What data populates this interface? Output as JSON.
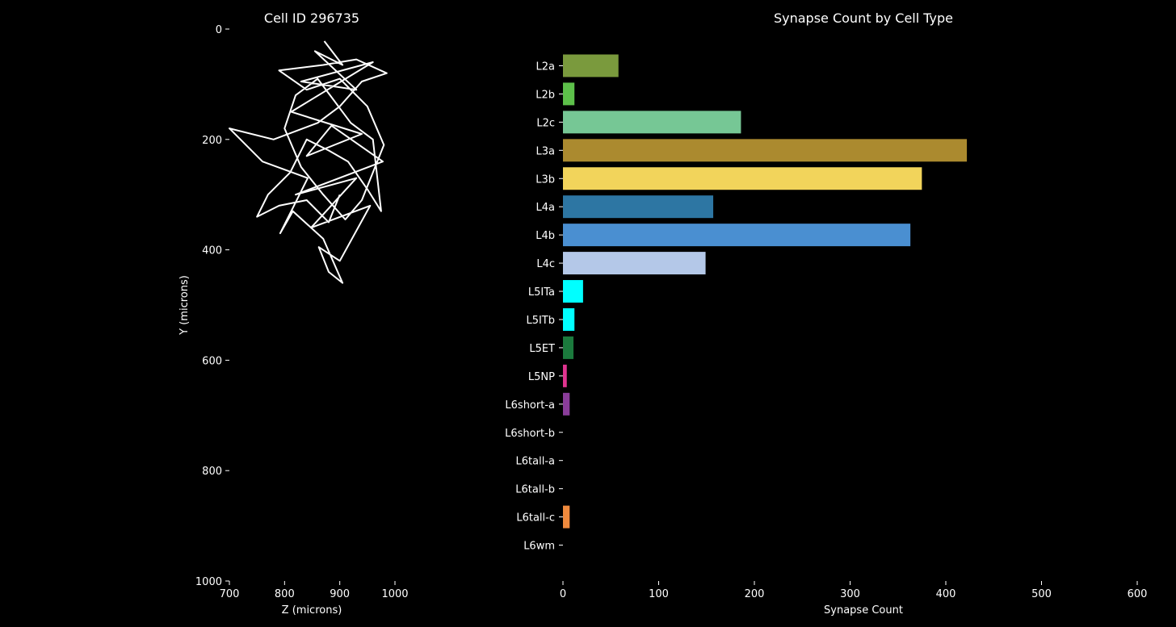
{
  "chart_data": [
    {
      "type": "line",
      "title": "Cell ID 296735",
      "xlabel": "Z (microns)",
      "ylabel": "Y (microns)",
      "xlim": [
        700,
        1000
      ],
      "ylim": [
        1000,
        0
      ],
      "y_inverted": true,
      "xticks": [
        700,
        800,
        900,
        1000
      ],
      "yticks": [
        0,
        200,
        400,
        600,
        800,
        1000
      ],
      "grid": false,
      "line_color": "#ffffff",
      "series": [
        {
          "values": [
            [
              872,
              22
            ],
            [
              905,
              65
            ],
            [
              855,
              40
            ],
            [
              930,
              110
            ],
            [
              830,
              95
            ],
            [
              960,
              60
            ],
            [
              812,
              150
            ],
            [
              940,
              190
            ],
            [
              840,
              230
            ],
            [
              885,
              175
            ],
            [
              978,
              240
            ],
            [
              820,
              300
            ],
            [
              930,
              270
            ],
            [
              848,
              360
            ],
            [
              955,
              320
            ],
            [
              900,
              420
            ],
            [
              862,
              395
            ],
            [
              880,
              440
            ],
            [
              905,
              460
            ],
            [
              870,
              380
            ],
            [
              815,
              330
            ],
            [
              792,
              370
            ],
            [
              842,
              270
            ],
            [
              760,
              240
            ],
            [
              700,
              180
            ],
            [
              780,
              200
            ],
            [
              860,
              170
            ],
            [
              900,
              140
            ],
            [
              940,
              95
            ],
            [
              985,
              80
            ],
            [
              930,
              55
            ],
            [
              870,
              65
            ],
            [
              790,
              75
            ],
            [
              840,
              110
            ],
            [
              900,
              90
            ],
            [
              950,
              140
            ],
            [
              980,
              210
            ],
            [
              960,
              260
            ],
            [
              940,
              310
            ],
            [
              910,
              345
            ],
            [
              870,
              300
            ],
            [
              830,
              250
            ],
            [
              800,
              180
            ],
            [
              820,
              120
            ],
            [
              860,
              90
            ],
            [
              890,
              130
            ],
            [
              920,
              170
            ],
            [
              960,
              200
            ],
            [
              975,
              330
            ],
            [
              950,
              290
            ],
            [
              915,
              240
            ],
            [
              880,
              220
            ],
            [
              840,
              200
            ],
            [
              810,
              260
            ],
            [
              770,
              300
            ],
            [
              750,
              340
            ],
            [
              790,
              320
            ],
            [
              840,
              310
            ],
            [
              880,
              350
            ],
            [
              900,
              300
            ]
          ]
        }
      ]
    },
    {
      "type": "bar",
      "orientation": "horizontal",
      "title": "Synapse Count by Cell Type",
      "xlabel": "Synapse Count",
      "ylabel": "",
      "xlim": [
        0,
        600
      ],
      "xticks": [
        0,
        100,
        200,
        300,
        400,
        500,
        600
      ],
      "grid": false,
      "categories": [
        "L2a",
        "L2b",
        "L2c",
        "L3a",
        "L3b",
        "L4a",
        "L4b",
        "L4c",
        "L5ITa",
        "L5ITb",
        "L5ET",
        "L5NP",
        "L6short-a",
        "L6short-b",
        "L6tall-a",
        "L6tall-b",
        "L6tall-c",
        "L6wm"
      ],
      "values": [
        58,
        12,
        186,
        422,
        375,
        157,
        363,
        149,
        21,
        12,
        11,
        4,
        7,
        0,
        0,
        0,
        7,
        0
      ],
      "colors": [
        "#7a9a3d",
        "#5dc04a",
        "#76c795",
        "#ab8a2f",
        "#f2d45b",
        "#2d76a3",
        "#4a8fd1",
        "#b4c8e8",
        "#00ffff",
        "#00ffff",
        "#1b7a3d",
        "#e0338f",
        "#8a3d9a",
        "#000000",
        "#000000",
        "#000000",
        "#f08a3d",
        "#000000"
      ]
    }
  ]
}
